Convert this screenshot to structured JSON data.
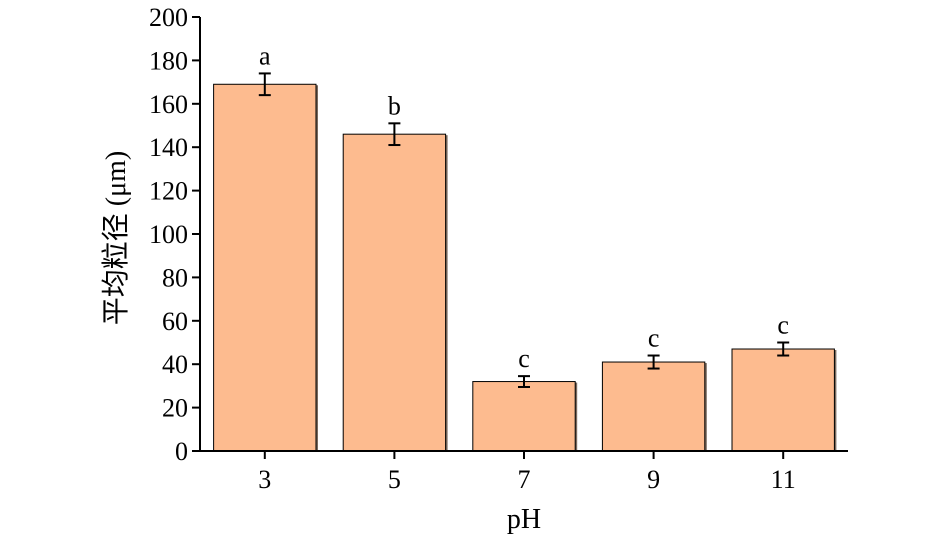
{
  "chart_data": {
    "type": "bar",
    "categories": [
      "3",
      "5",
      "7",
      "9",
      "11"
    ],
    "values": [
      169,
      146,
      32,
      41,
      47
    ],
    "errors": [
      5,
      5,
      2.5,
      3,
      3
    ],
    "significance": [
      "a",
      "b",
      "c",
      "c",
      "c"
    ],
    "xlabel": "pH",
    "ylabel": "平均粒径 (μm)",
    "ylim": [
      0,
      200
    ],
    "yticks": [
      0,
      20,
      40,
      60,
      80,
      100,
      120,
      140,
      160,
      180,
      200
    ],
    "bar_color": "#fdbb8f",
    "grid": false
  }
}
